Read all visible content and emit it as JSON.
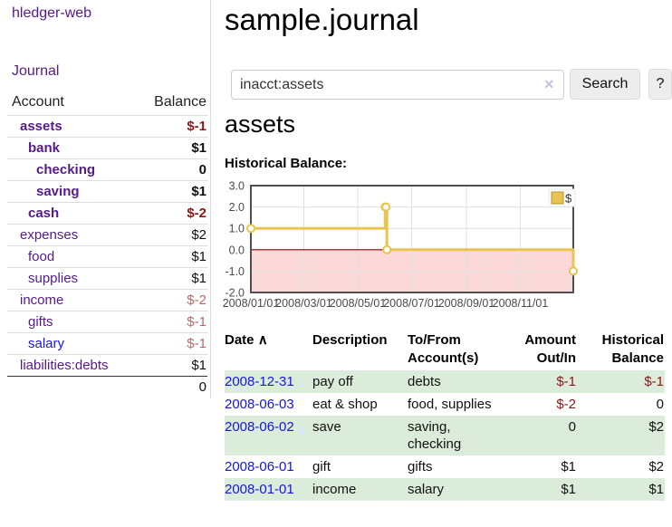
{
  "colors": {
    "link_purple": "#551a8b",
    "link_blue": "#1414e6",
    "negative_dark_red": "#8c1717",
    "negative_muted_red": "#b36b6b",
    "row_stripe_green": "#dcecdb",
    "chart_line_gold": "#e9c450",
    "chart_negative_fill_pink": "#fcd9d9",
    "chart_zero_line": "#8b0000"
  },
  "sidebar": {
    "app_title": "hledger-web",
    "journal_label": "Journal",
    "accounts_table": {
      "headers": {
        "account": "Account",
        "balance": "Balance"
      },
      "rows": [
        {
          "name": "assets",
          "balance": "$-1",
          "level": 1,
          "bold": true,
          "negative": true,
          "muted": false,
          "blue": false
        },
        {
          "name": "bank",
          "balance": "$1",
          "level": 2,
          "bold": true,
          "negative": false,
          "muted": false,
          "blue": false
        },
        {
          "name": "checking",
          "balance": "0",
          "level": 3,
          "bold": true,
          "negative": false,
          "muted": false,
          "blue": false
        },
        {
          "name": "saving",
          "balance": "$1",
          "level": 3,
          "bold": true,
          "negative": false,
          "muted": false,
          "blue": false
        },
        {
          "name": "cash",
          "balance": "$-2",
          "level": 2,
          "bold": true,
          "negative": true,
          "muted": false,
          "blue": false
        },
        {
          "name": "expenses",
          "balance": "$2",
          "level": 1,
          "bold": false,
          "negative": false,
          "muted": false,
          "blue": false
        },
        {
          "name": "food",
          "balance": "$1",
          "level": 2,
          "bold": false,
          "negative": false,
          "muted": false,
          "blue": false
        },
        {
          "name": "supplies",
          "balance": "$1",
          "level": 2,
          "bold": false,
          "negative": false,
          "muted": false,
          "blue": false
        },
        {
          "name": "income",
          "balance": "$-2",
          "level": 1,
          "bold": false,
          "negative": true,
          "muted": true,
          "blue": false
        },
        {
          "name": "gifts",
          "balance": "$-1",
          "level": 2,
          "bold": false,
          "negative": true,
          "muted": true,
          "blue": false
        },
        {
          "name": "salary",
          "balance": "$-1",
          "level": 2,
          "bold": false,
          "negative": true,
          "muted": true,
          "blue": true
        },
        {
          "name": "liabilities:debts",
          "balance": "$1",
          "level": 1,
          "bold": false,
          "negative": false,
          "muted": false,
          "blue": false
        }
      ],
      "total": "0"
    }
  },
  "main": {
    "title": "sample.journal",
    "search": {
      "value": "inacct:assets",
      "clear_icon": "×",
      "button_label": "Search",
      "help_label": "?"
    },
    "account_heading": "assets"
  },
  "chart_data": {
    "type": "line",
    "title": "Historical Balance:",
    "step": true,
    "x_range": [
      "2008-01-01",
      "2008-12-31"
    ],
    "ylim": [
      -2,
      3
    ],
    "y_ticks": [
      3,
      2,
      1,
      0,
      -1,
      -2
    ],
    "x_ticks": [
      {
        "date": "2008-01-01",
        "label": "2008/01/01"
      },
      {
        "date": "2008-03-01",
        "label": "2008/03/01"
      },
      {
        "date": "2008-05-01",
        "label": "2008/05/01"
      },
      {
        "date": "2008-07-01",
        "label": "2008/07/01"
      },
      {
        "date": "2008-09-01",
        "label": "2008/09/01"
      },
      {
        "date": "2008-11-01",
        "label": "2008/11/01"
      }
    ],
    "series": [
      {
        "name": "$",
        "color": "#e9c450",
        "points": [
          [
            "2008-01-01",
            1
          ],
          [
            "2008-06-01",
            2
          ],
          [
            "2008-06-02",
            2
          ],
          [
            "2008-06-03",
            0
          ],
          [
            "2008-12-31",
            -1
          ]
        ]
      }
    ],
    "legend": {
      "label": "$",
      "position": "top-right"
    },
    "grid": true,
    "negative_region_color": "#fcd9d9",
    "zero_line_color": "#8b0000"
  },
  "register_table": {
    "headers": {
      "date": "Date",
      "sort_icon": "∧",
      "description": "Description",
      "accounts": "To/From Account(s)",
      "amount": "Amount Out/In",
      "balance": "Historical Balance"
    },
    "rows": [
      {
        "date": "2008-12-31",
        "description": "pay off",
        "accounts": "debts",
        "amount": "$-1",
        "amount_negative": true,
        "balance": "$-1",
        "balance_negative": true
      },
      {
        "date": "2008-06-03",
        "description": "eat & shop",
        "accounts": "food, supplies",
        "amount": "$-2",
        "amount_negative": true,
        "balance": "0",
        "balance_negative": false
      },
      {
        "date": "2008-06-02",
        "description": "save",
        "accounts": "saving, checking",
        "amount": "0",
        "amount_negative": false,
        "balance": "$2",
        "balance_negative": false
      },
      {
        "date": "2008-06-01",
        "description": "gift",
        "accounts": "gifts",
        "amount": "$1",
        "amount_negative": false,
        "balance": "$2",
        "balance_negative": false
      },
      {
        "date": "2008-01-01",
        "description": "income",
        "accounts": "salary",
        "amount": "$1",
        "amount_negative": false,
        "balance": "$1",
        "balance_negative": false
      }
    ]
  }
}
